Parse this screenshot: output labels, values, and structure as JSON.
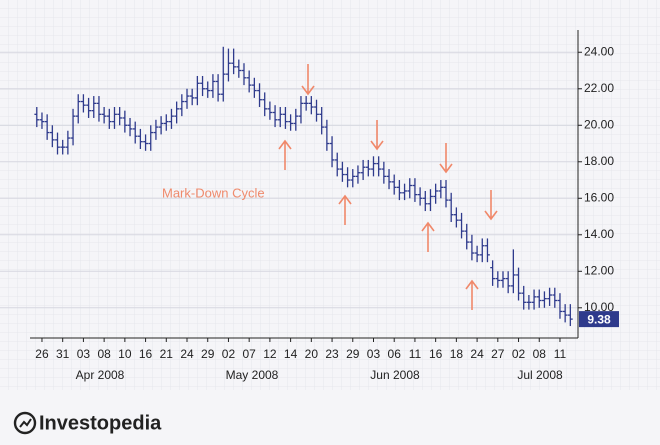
{
  "chart_data": {
    "type": "ohlc",
    "annotation": "Mark-Down Cycle",
    "color": "#2e3a8c",
    "categories": [
      null,
      "26",
      null,
      null,
      null,
      "31",
      null,
      null,
      null,
      "03",
      null,
      null,
      null,
      "08",
      null,
      null,
      null,
      "10",
      null,
      null,
      null,
      "16",
      null,
      null,
      null,
      "21",
      null,
      null,
      null,
      "24",
      null,
      null,
      null,
      "29",
      null,
      null,
      null,
      "02",
      null,
      null,
      null,
      "07",
      null,
      null,
      null,
      "12",
      null,
      null,
      null,
      "14",
      null,
      null,
      null,
      "20",
      null,
      null,
      null,
      "23",
      null,
      null,
      null,
      "29",
      null,
      null,
      null,
      "03",
      null,
      null,
      null,
      "06",
      null,
      null,
      null,
      "11",
      null,
      null,
      null,
      "16",
      null,
      null,
      null,
      "18",
      null,
      null,
      null,
      "24",
      null,
      null,
      null,
      "27",
      null,
      null,
      null,
      "02",
      null,
      null,
      null,
      "08",
      null,
      null,
      null,
      "11",
      null,
      null
    ],
    "months": [
      "Apr 2008",
      "May 2008",
      "Jun 2008",
      "Jul 2008"
    ],
    "open": [
      20.6,
      20.3,
      20.2,
      19.6,
      19.2,
      18.8,
      18.8,
      19.3,
      20.5,
      21.3,
      21.1,
      20.8,
      21.2,
      20.6,
      20.5,
      20.2,
      20.6,
      20.4,
      20.0,
      19.8,
      19.4,
      19.1,
      19.0,
      19.6,
      19.9,
      20.1,
      20.2,
      20.5,
      20.9,
      21.3,
      21.6,
      21.5,
      22.3,
      22.0,
      21.9,
      22.4,
      21.7,
      22.8,
      23.4,
      23.2,
      23.0,
      22.6,
      22.2,
      21.9,
      21.4,
      20.9,
      20.7,
      20.3,
      20.6,
      20.2,
      20.1,
      20.5,
      21.2,
      21.2,
      21.0,
      20.6,
      19.9,
      19.0,
      18.1,
      17.6,
      17.3,
      17.0,
      17.2,
      17.4,
      17.7,
      17.6,
      17.9,
      17.6,
      17.2,
      16.9,
      16.6,
      16.3,
      16.4,
      16.7,
      16.2,
      16.0,
      15.7,
      16.1,
      16.4,
      16.6,
      15.9,
      15.1,
      14.8,
      14.2,
      13.6,
      13.0,
      12.9,
      13.4,
      12.2,
      11.6,
      11.5,
      11.6,
      11.2,
      11.8,
      10.8,
      10.3,
      10.3,
      10.6,
      10.4,
      10.5,
      10.7,
      10.4,
      9.8,
      9.6
    ],
    "high": [
      21.0,
      20.7,
      20.6,
      20.0,
      19.6,
      19.2,
      19.7,
      20.9,
      21.7,
      21.7,
      21.5,
      21.6,
      21.6,
      21.0,
      20.9,
      21.0,
      21.0,
      20.8,
      20.4,
      20.2,
      19.8,
      19.5,
      20.0,
      20.3,
      20.5,
      20.6,
      20.9,
      21.3,
      21.7,
      22.0,
      22.0,
      22.7,
      22.7,
      22.4,
      22.8,
      22.8,
      24.3,
      24.2,
      24.2,
      23.6,
      23.4,
      23.0,
      22.6,
      22.3,
      21.8,
      21.3,
      21.1,
      21.0,
      21.0,
      20.6,
      20.9,
      21.6,
      21.6,
      21.6,
      21.4,
      21.0,
      20.3,
      19.4,
      18.5,
      18.0,
      17.7,
      17.6,
      17.8,
      18.1,
      18.1,
      18.3,
      18.3,
      18.0,
      17.6,
      17.3,
      17.0,
      16.8,
      17.1,
      17.1,
      16.6,
      16.4,
      16.5,
      16.8,
      17.0,
      17.0,
      16.3,
      15.5,
      15.2,
      14.6,
      14.0,
      13.4,
      13.8,
      13.8,
      12.6,
      12.0,
      12.0,
      12.0,
      13.2,
      12.2,
      11.2,
      10.7,
      11.0,
      11.0,
      10.9,
      11.1,
      11.1,
      10.8,
      10.2,
      10.2
    ],
    "low": [
      19.9,
      19.8,
      19.2,
      18.8,
      18.4,
      18.4,
      18.4,
      18.9,
      20.1,
      20.7,
      20.4,
      20.4,
      20.2,
      20.1,
      19.8,
      19.8,
      20.0,
      19.6,
      19.4,
      19.0,
      18.7,
      18.6,
      18.6,
      19.2,
      19.5,
      19.7,
      19.8,
      20.1,
      20.5,
      20.9,
      21.1,
      21.1,
      21.6,
      21.5,
      21.5,
      21.3,
      21.3,
      22.4,
      22.8,
      22.6,
      22.2,
      21.8,
      21.5,
      21.0,
      20.5,
      20.3,
      19.9,
      19.9,
      19.8,
      19.7,
      19.7,
      20.1,
      20.8,
      20.6,
      20.2,
      19.5,
      18.6,
      17.7,
      17.2,
      16.9,
      16.6,
      16.6,
      16.8,
      17.0,
      17.2,
      17.2,
      17.2,
      16.8,
      16.5,
      16.2,
      15.9,
      15.9,
      16.0,
      15.8,
      15.6,
      15.3,
      15.3,
      15.7,
      16.0,
      15.5,
      14.7,
      14.4,
      13.8,
      13.2,
      12.6,
      12.5,
      12.5,
      12.5,
      11.2,
      11.1,
      11.1,
      10.8,
      10.8,
      10.4,
      9.9,
      9.9,
      9.9,
      10.0,
      10.0,
      10.1,
      10.0,
      9.4,
      9.2,
      9.0
    ],
    "close": [
      20.3,
      20.2,
      19.6,
      19.2,
      18.8,
      18.8,
      19.3,
      20.5,
      21.3,
      21.1,
      20.8,
      21.2,
      20.6,
      20.5,
      20.2,
      20.6,
      20.4,
      20.0,
      19.8,
      19.4,
      19.1,
      19.0,
      19.6,
      19.9,
      20.1,
      20.2,
      20.5,
      20.9,
      21.3,
      21.6,
      21.5,
      22.3,
      22.0,
      21.9,
      22.4,
      21.7,
      22.8,
      23.4,
      23.2,
      23.0,
      22.6,
      22.2,
      21.9,
      21.4,
      20.9,
      20.7,
      20.3,
      20.6,
      20.2,
      20.1,
      20.5,
      21.2,
      21.2,
      21.0,
      20.6,
      19.9,
      19.0,
      18.1,
      17.6,
      17.3,
      17.0,
      17.2,
      17.4,
      17.7,
      17.6,
      17.9,
      17.6,
      17.2,
      16.9,
      16.6,
      16.3,
      16.4,
      16.7,
      16.2,
      16.0,
      15.7,
      16.1,
      16.4,
      16.6,
      15.9,
      15.1,
      14.8,
      14.2,
      13.6,
      13.0,
      12.9,
      13.4,
      12.9,
      11.6,
      11.5,
      11.6,
      11.2,
      11.8,
      10.8,
      10.3,
      10.3,
      10.6,
      10.4,
      10.5,
      10.7,
      10.4,
      9.8,
      9.6,
      9.38
    ],
    "ylim": [
      8.4,
      25
    ],
    "yticks": [
      {
        "value": 10,
        "label": "10.00"
      },
      {
        "value": 12,
        "label": "12.00"
      },
      {
        "value": 14,
        "label": "14.00"
      },
      {
        "value": 16,
        "label": "16.00"
      },
      {
        "value": 18,
        "label": "18.00"
      },
      {
        "value": 20,
        "label": "20.00"
      },
      {
        "value": 22,
        "label": "22.00"
      },
      {
        "value": 24,
        "label": "24.00"
      }
    ],
    "grid": true
  },
  "brand": "Investopedia"
}
